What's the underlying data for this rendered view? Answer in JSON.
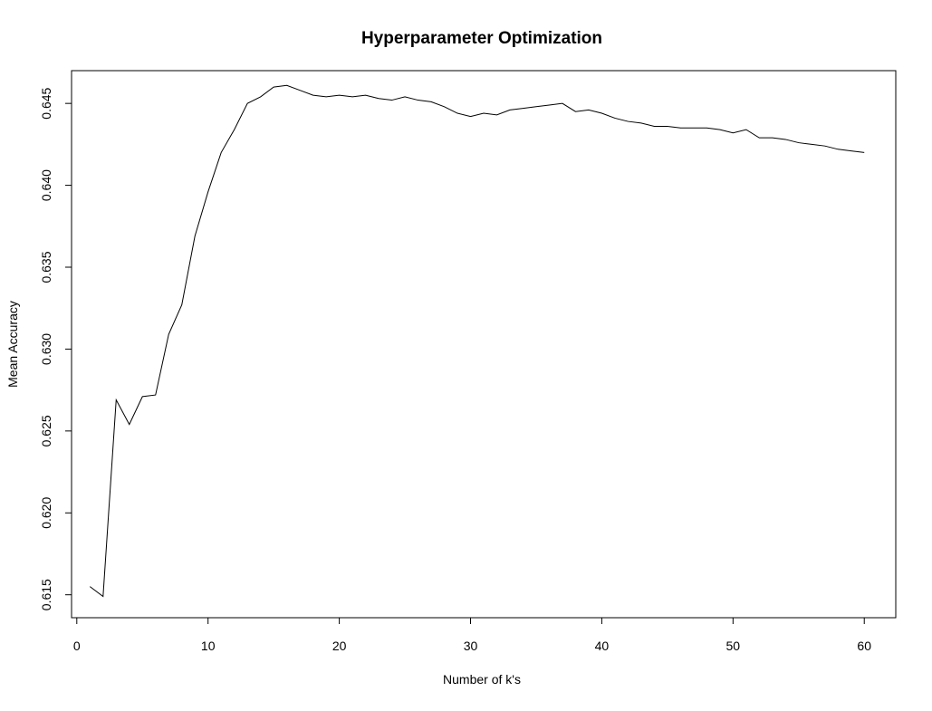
{
  "chart_data": {
    "type": "line",
    "title": "Hyperparameter Optimization",
    "xlabel": "Number of k's",
    "ylabel": "Mean Accuracy",
    "xlim": [
      -0.4,
      62.4
    ],
    "ylim": [
      0.6136,
      0.647
    ],
    "x_ticks": [
      0,
      10,
      20,
      30,
      40,
      50,
      60
    ],
    "x_tick_labels": [
      "0",
      "10",
      "20",
      "30",
      "40",
      "50",
      "60"
    ],
    "y_ticks": [
      0.615,
      0.62,
      0.625,
      0.63,
      0.635,
      0.64,
      0.645
    ],
    "y_tick_labels": [
      "0.615",
      "0.620",
      "0.625",
      "0.630",
      "0.635",
      "0.640",
      "0.645"
    ],
    "grid": false,
    "legend": "none",
    "line_color": "#000000",
    "series": [
      {
        "x": [
          1,
          2,
          3,
          4,
          5,
          6,
          7,
          8,
          9,
          10,
          11,
          12,
          13,
          14,
          15,
          16,
          17,
          18,
          19,
          20,
          21,
          22,
          23,
          24,
          25,
          26,
          27,
          28,
          29,
          30,
          31,
          32,
          33,
          34,
          35,
          36,
          37,
          38,
          39,
          40,
          41,
          42,
          43,
          44,
          45,
          46,
          47,
          48,
          49,
          50,
          51,
          52,
          53,
          54,
          55,
          56,
          57,
          58,
          59,
          60
        ],
        "values": [
          0.6155,
          0.6149,
          0.6269,
          0.6254,
          0.6271,
          0.6272,
          0.6309,
          0.6327,
          0.6369,
          0.6396,
          0.642,
          0.6434,
          0.645,
          0.6454,
          0.646,
          0.6461,
          0.6458,
          0.6455,
          0.6454,
          0.6455,
          0.6454,
          0.6455,
          0.6453,
          0.6452,
          0.6454,
          0.6452,
          0.6451,
          0.6448,
          0.6444,
          0.6442,
          0.6444,
          0.6443,
          0.6446,
          0.6447,
          0.6448,
          0.6449,
          0.645,
          0.6445,
          0.6446,
          0.6444,
          0.6441,
          0.6439,
          0.6438,
          0.6436,
          0.6436,
          0.6435,
          0.6435,
          0.6435,
          0.6434,
          0.6432,
          0.6434,
          0.6429,
          0.6429,
          0.6428,
          0.6426,
          0.6425,
          0.6424,
          0.6422,
          0.6421,
          0.642
        ]
      }
    ]
  }
}
